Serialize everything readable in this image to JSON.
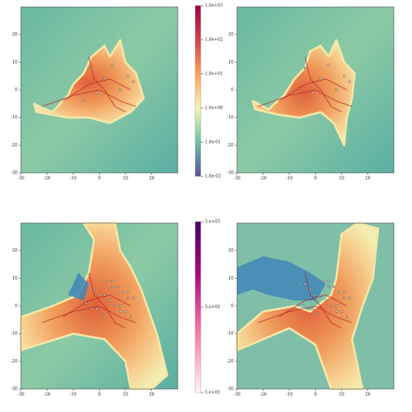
{
  "chart_data": [
    {
      "type": "density-map",
      "xlim": [
        -30,
        30
      ],
      "ylim": [
        -30,
        30
      ],
      "xticks": [
        -30,
        -20,
        -10,
        0,
        10,
        20
      ],
      "yticks": [
        -30,
        -20,
        -10,
        0,
        10,
        20
      ]
    },
    {
      "type": "density-map",
      "xlim": [
        -30,
        30
      ],
      "ylim": [
        -30,
        30
      ],
      "xticks": [
        -30,
        -20,
        -10,
        0,
        10,
        20
      ],
      "yticks": [
        -30,
        -20,
        -10,
        0,
        10,
        20
      ]
    },
    {
      "type": "density-map",
      "xlim": [
        -30,
        30
      ],
      "ylim": [
        -30,
        30
      ],
      "xticks": [
        -30,
        -20,
        -10,
        0,
        10,
        20
      ],
      "yticks": [
        -30,
        -20,
        -10,
        0,
        10,
        20
      ]
    },
    {
      "type": "density-map",
      "xlim": [
        -30,
        30
      ],
      "ylim": [
        -30,
        30
      ],
      "xticks": [
        -30,
        -20,
        -10,
        0,
        10,
        20
      ],
      "yticks": [
        -30,
        -20,
        -10,
        0,
        10,
        20
      ]
    }
  ],
  "colorbars": [
    {
      "log_scale": true,
      "clim": [
        0.01,
        1000
      ],
      "ticks": [
        {
          "value": 1000,
          "label": "1.0e+03"
        },
        {
          "value": 100,
          "label": "1.0e+02"
        },
        {
          "value": 10,
          "label": "1.0e+01"
        },
        {
          "value": 1,
          "label": "1.0e+00"
        },
        {
          "value": 0.1,
          "label": "1.0e-01"
        },
        {
          "value": 0.01,
          "label": "1.0e-02"
        }
      ]
    },
    {
      "log_scale": true,
      "clim": [
        50,
        5000
      ],
      "ticks": [
        {
          "value": 5000,
          "label": "5.e+03"
        },
        {
          "value": 500,
          "label": "5.e+02"
        },
        {
          "value": 50,
          "label": "5.e+01"
        }
      ]
    }
  ]
}
